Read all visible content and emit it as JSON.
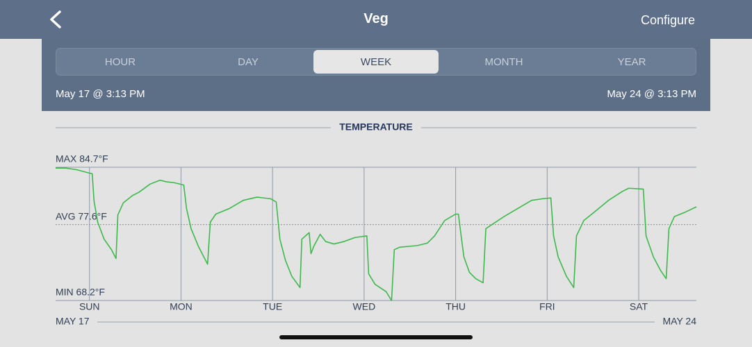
{
  "header": {
    "title": "Veg",
    "action": "Configure"
  },
  "tabs": [
    "HOUR",
    "DAY",
    "WEEK",
    "MONTH",
    "YEAR"
  ],
  "selected_tab": 2,
  "range": {
    "start": "May 17 @ 3:13 PM",
    "end": "May 24 @ 3:13 PM"
  },
  "chart_data": {
    "type": "line",
    "title": "TEMPERATURE",
    "ylim": [
      68.2,
      84.7
    ],
    "reference_lines": [
      {
        "label": "MAX 84.7°F",
        "value": 84.7,
        "style": "solid"
      },
      {
        "label": "AVG 77.6°F",
        "value": 77.6,
        "style": "dotted"
      },
      {
        "label": "MIN 68.2°F",
        "value": 68.2,
        "style": "solid"
      }
    ],
    "xlim": [
      0,
      7
    ],
    "xticks": [
      {
        "value": 0.37,
        "label": "SUN"
      },
      {
        "value": 1.37,
        "label": "MON"
      },
      {
        "value": 2.37,
        "label": "TUE"
      },
      {
        "value": 3.37,
        "label": "WED"
      },
      {
        "value": 4.37,
        "label": "THU"
      },
      {
        "value": 5.37,
        "label": "FRI"
      },
      {
        "value": 6.37,
        "label": "SAT"
      }
    ],
    "x_start_label": "MAY 17",
    "x_end_label": "MAY 24",
    "grid": true,
    "x": [
      0,
      0.11,
      0.23,
      0.36,
      0.4,
      0.42,
      0.46,
      0.53,
      0.61,
      0.66,
      0.68,
      0.74,
      0.84,
      0.91,
      1.03,
      1.14,
      1.21,
      1.29,
      1.4,
      1.43,
      1.48,
      1.56,
      1.66,
      1.69,
      1.75,
      1.9,
      2.05,
      2.2,
      2.35,
      2.41,
      2.45,
      2.51,
      2.58,
      2.67,
      2.69,
      2.77,
      2.79,
      2.82,
      2.89,
      2.95,
      3.04,
      3.15,
      3.27,
      3.4,
      3.42,
      3.49,
      3.61,
      3.67,
      3.7,
      3.76,
      3.95,
      4.06,
      4.14,
      4.25,
      4.37,
      4.4,
      4.42,
      4.46,
      4.52,
      4.59,
      4.67,
      4.7,
      4.78,
      4.9,
      5.05,
      5.2,
      5.32,
      5.41,
      5.44,
      5.49,
      5.58,
      5.66,
      5.69,
      5.77,
      5.88,
      6.04,
      6.19,
      6.26,
      6.42,
      6.45,
      6.53,
      6.61,
      6.67,
      6.7,
      6.76,
      6.87,
      7.0
    ],
    "series": [
      {
        "color": "#3cb94a",
        "values": [
          84.6,
          84.6,
          84.4,
          84.0,
          83.9,
          80.5,
          77.9,
          75.8,
          74.5,
          73.4,
          78.8,
          80.3,
          81.2,
          81.6,
          82.6,
          83.1,
          82.9,
          82.8,
          82.5,
          79.6,
          77.1,
          74.9,
          72.7,
          77.9,
          78.9,
          79.6,
          80.6,
          81.0,
          80.8,
          80.4,
          75.8,
          73.2,
          71.2,
          69.8,
          75.8,
          76.6,
          74.0,
          74.9,
          76.4,
          75.5,
          75.2,
          75.5,
          76.0,
          76.2,
          71.5,
          70.2,
          69.3,
          68.2,
          74.5,
          74.8,
          75.0,
          75.3,
          76.2,
          78.1,
          78.9,
          78.9,
          77.1,
          73.6,
          71.7,
          70.9,
          70.4,
          77.1,
          77.7,
          78.6,
          79.6,
          80.6,
          80.8,
          80.9,
          76.2,
          73.6,
          71.2,
          69.8,
          76.2,
          78.1,
          79.1,
          80.6,
          81.7,
          82.1,
          82.0,
          76.2,
          73.6,
          71.9,
          70.9,
          77.1,
          78.6,
          79.1,
          79.8
        ]
      }
    ]
  }
}
